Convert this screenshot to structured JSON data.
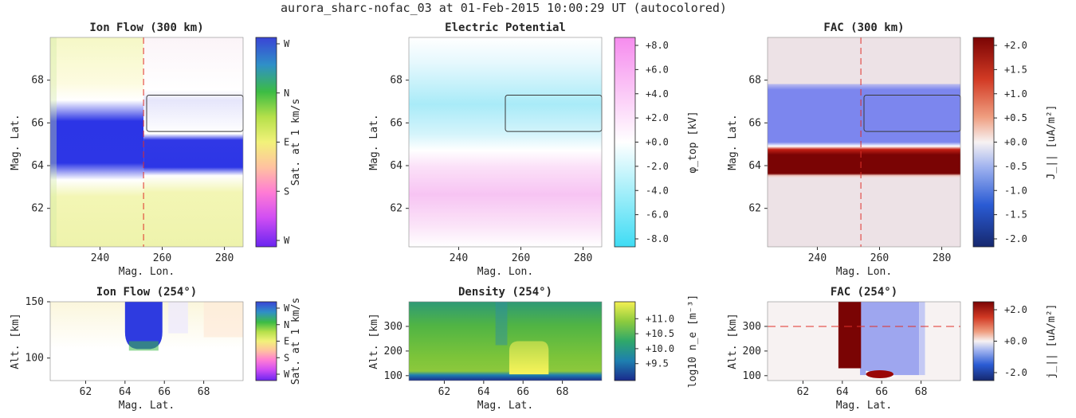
{
  "figure": {
    "suptitle": "aurora_sharc-nofac_03 at 01-Feb-2015 10:00:29 UT (autocolored)"
  },
  "chart_data": [
    {
      "type": "heatmap",
      "title": "Ion Flow (300 km)",
      "xlabel": "Mag. Lon.",
      "ylabel": "Mag. Lat.",
      "xlim": [
        224,
        286
      ],
      "ylim": [
        60.2,
        70
      ],
      "xticks": [
        240,
        260,
        280
      ],
      "yticks": [
        62,
        64,
        66,
        68
      ],
      "colorbar": {
        "label": "Sat. at 1 km/s",
        "ticks": [
          "W",
          "N",
          "E",
          "S",
          "W"
        ],
        "colormap": [
          "#6a25f0",
          "#ff5cf2",
          "#ffb4a0",
          "#f2f27a",
          "#8ecc3a",
          "#2fb04a",
          "#2b6fd9",
          "#3a44d6"
        ]
      },
      "overlays": {
        "dashed_x": 254,
        "box": {
          "x": [
            255,
            286
          ],
          "y": [
            65.6,
            67.3
          ]
        }
      },
      "features": [
        {
          "region": "lat 64.0-66.9",
          "flow": "W"
        },
        {
          "region": "elsewhere",
          "flow": "E"
        }
      ]
    },
    {
      "type": "heatmap",
      "title": "Electric Potential",
      "xlabel": "Mag. Lon.",
      "ylabel": "Mag. Lat.",
      "xlim": [
        224,
        286
      ],
      "ylim": [
        60.2,
        70
      ],
      "xticks": [
        240,
        260,
        280
      ],
      "yticks": [
        62,
        64,
        66,
        68
      ],
      "colorbar": {
        "label": "φ_top [kV]",
        "ticks": [
          "+8.0",
          "+6.0",
          "+4.0",
          "+2.0",
          "+0.0",
          "-2.0",
          "-4.0",
          "-6.0",
          "-8.0"
        ],
        "range": [
          -8.0,
          8.0
        ],
        "colormap": [
          "#3fdcf4",
          "#ffffff",
          "#f68cee"
        ]
      },
      "overlays": {
        "box": {
          "x": [
            255,
            286
          ],
          "y": [
            65.6,
            67.3
          ]
        }
      },
      "features": [
        {
          "region": "lat 65.8-69",
          "potential_kV": -3.5
        },
        {
          "region": "lat 61-65",
          "potential_kV": 3.0
        }
      ]
    },
    {
      "type": "heatmap",
      "title": "FAC (300 km)",
      "xlabel": "Mag. Lon.",
      "ylabel": "Mag. Lat.",
      "xlim": [
        224,
        286
      ],
      "ylim": [
        60.2,
        70
      ],
      "xticks": [
        240,
        260,
        280
      ],
      "yticks": [
        62,
        64,
        66,
        68
      ],
      "colorbar": {
        "label": "J_|| [uA/m²]",
        "ticks": [
          "+2.0",
          "+1.5",
          "+1.0",
          "+0.5",
          "+0.0",
          "-0.5",
          "-1.0",
          "-1.5",
          "-2.0"
        ],
        "range": [
          -2.0,
          2.0
        ],
        "colormap": [
          "#16286e",
          "#2a5bd4",
          "#9fb2ef",
          "#f7f2f2",
          "#ef9e80",
          "#d23a24",
          "#7a0404"
        ]
      },
      "overlays": {
        "dashed_x": 254,
        "box": {
          "x": [
            255,
            286
          ],
          "y": [
            65.6,
            67.3
          ]
        }
      },
      "features": [
        {
          "band_lat": [
            65.0,
            67.9
          ],
          "J": -1.0
        },
        {
          "band_lat": [
            63.8,
            65.0
          ],
          "J": 2.0
        }
      ]
    },
    {
      "type": "heatmap",
      "title": "Ion Flow (254°)",
      "xlabel": "Mag. Lat.",
      "ylabel": "Alt. [km]",
      "xlim": [
        60.2,
        70
      ],
      "ylim": [
        80,
        150
      ],
      "xticks": [
        62,
        64,
        66,
        68
      ],
      "yticks": [
        100,
        150
      ],
      "colorbar": {
        "label": "Sat. at 1 km/s",
        "ticks": [
          "W",
          "N",
          "E",
          "S",
          "W"
        ],
        "colormap": [
          "#6a25f0",
          "#ff5cf2",
          "#ffb4a0",
          "#f2f27a",
          "#8ecc3a",
          "#2fb04a",
          "#2b6fd9",
          "#3a44d6"
        ]
      }
    },
    {
      "type": "heatmap",
      "title": "Density (254°)",
      "xlabel": "Mag. Lat.",
      "ylabel": "Alt. [km]",
      "xlim": [
        60.2,
        70
      ],
      "ylim": [
        80,
        400
      ],
      "xticks": [
        62,
        64,
        66,
        68
      ],
      "yticks": [
        100,
        200,
        300
      ],
      "colorbar": {
        "label": "log10 n_e [m⁻³]",
        "ticks": [
          "+11.0",
          "+10.5",
          "+10.0",
          "+9.5"
        ],
        "range": [
          9.2,
          11.3
        ],
        "colormap": [
          "#1a2a8c",
          "#1e7fb0",
          "#2fa86a",
          "#8ccb3e",
          "#f5f052"
        ]
      }
    },
    {
      "type": "heatmap",
      "title": "FAC (254°)",
      "xlabel": "Mag. Lat.",
      "ylabel": "Alt. [km]",
      "xlim": [
        60.2,
        70
      ],
      "ylim": [
        80,
        400
      ],
      "xticks": [
        62,
        64,
        66,
        68
      ],
      "yticks": [
        100,
        200,
        300
      ],
      "colorbar": {
        "label": "j_|| [uA/m²]",
        "ticks": [
          "+2.0",
          "+0.0",
          "-2.0"
        ],
        "range": [
          -2.0,
          2.0
        ],
        "colormap": [
          "#16286e",
          "#2a5bd4",
          "#9fb2ef",
          "#f7f2f2",
          "#ef9e80",
          "#d23a24",
          "#7a0404"
        ]
      },
      "overlays": {
        "dashed_y": 300
      }
    }
  ]
}
